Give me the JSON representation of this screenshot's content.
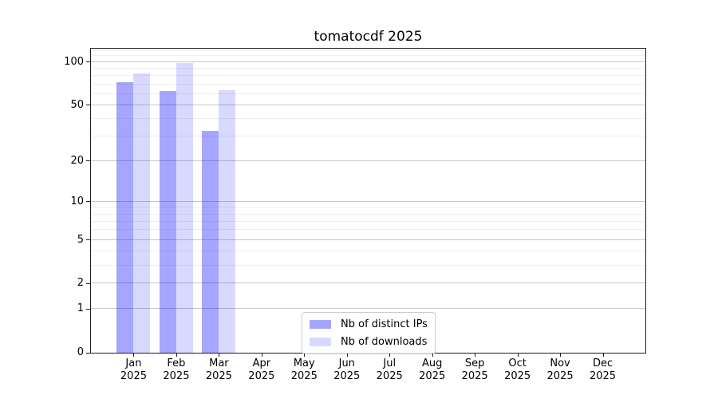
{
  "chart_data": {
    "type": "bar",
    "title": "tomatocdf 2025",
    "x_tick_months": [
      "Jan",
      "Feb",
      "Mar",
      "Apr",
      "May",
      "Jun",
      "Jul",
      "Aug",
      "Sep",
      "Oct",
      "Nov",
      "Dec"
    ],
    "x_tick_year": "2025",
    "series": [
      {
        "name": "Nb of distinct IPs",
        "color": "#0000ff59",
        "values": [
          72,
          63,
          33,
          0,
          0,
          0,
          0,
          0,
          0,
          0,
          0,
          0
        ]
      },
      {
        "name": "Nb of downloads",
        "color": "#0000ff26",
        "values": [
          83,
          98,
          64,
          0,
          0,
          0,
          0,
          0,
          0,
          0,
          0,
          0
        ]
      }
    ],
    "yscale": "log1p",
    "y_major_ticks": [
      0,
      1,
      2,
      5,
      10,
      20,
      50,
      100
    ],
    "y_minor_gridlines": [
      3,
      4,
      6,
      7,
      8,
      9,
      30,
      40,
      60,
      70,
      80,
      90,
      110,
      120
    ],
    "ylim": [
      0,
      124
    ],
    "xlabel": "",
    "ylabel": "",
    "grid": true,
    "legend_position": "lower center, inside axes",
    "colors": {
      "major_grid": "#c8c8c8",
      "minor_grid": "#efefef",
      "spine": "#1a1a1a",
      "text": "#000000",
      "legend_border": "#cccccc"
    }
  }
}
